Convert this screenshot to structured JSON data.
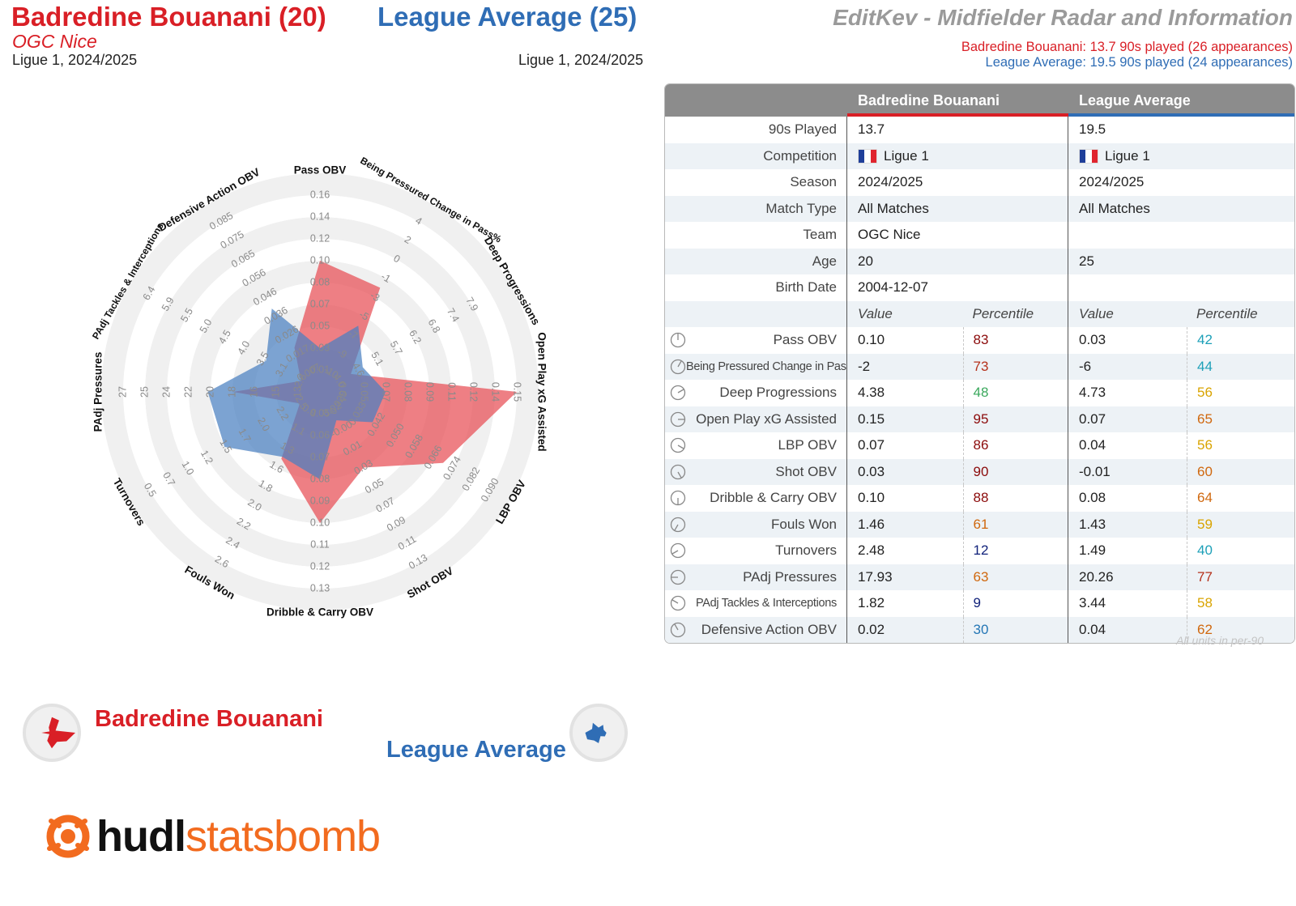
{
  "header": {
    "p1_title": "Badredine Bouanani (20)",
    "p2_title": "League Average (25)",
    "p1_team": "OGC Nice",
    "p1_season": "Ligue 1, 2024/2025",
    "p2_season": "Ligue 1, 2024/2025",
    "app_title": "EditKev - Midfielder Radar and Information",
    "p1_played": "Badredine Bouanani: 13.7 90s played (26 appearances)",
    "p2_played": "League Average: 19.5 90s played (24 appearances)"
  },
  "colors": {
    "p1": "#d91f26",
    "p2": "#2f6db5",
    "p1_fill": "#e8545b",
    "p2_fill": "#4a7fc1"
  },
  "chart_data": {
    "type": "radar",
    "axes": [
      {
        "label": "Pass OBV",
        "ticks": [
          "0.01",
          "0.03",
          "0.05",
          "0.07",
          "0.08",
          "0.10",
          "0.12",
          "0.14",
          "0.16"
        ]
      },
      {
        "label": "Being Pressured Change in Pass%",
        "ticks": [
          "-10",
          "-9",
          "-7",
          "-5",
          "-3",
          "-1",
          "0",
          "2",
          "4"
        ]
      },
      {
        "label": "Deep Progressions",
        "ticks": [
          "4.0",
          "4.6",
          "5.1",
          "5.7",
          "6.2",
          "6.8",
          "7.4",
          "7.9"
        ]
      },
      {
        "label": "Open Play xG Assisted",
        "ticks": [
          "0.04",
          "0.05",
          "0.07",
          "0.08",
          "0.09",
          "0.11",
          "0.12",
          "0.14",
          "0.15"
        ]
      },
      {
        "label": "LBP OBV",
        "ticks": [
          "0.025",
          "0.033",
          "0.042",
          "0.050",
          "0.058",
          "0.066",
          "0.074",
          "0.082",
          "0.090"
        ]
      },
      {
        "label": "Shot OBV",
        "ticks": [
          "-0.02",
          "-0.00",
          "0.01",
          "0.03",
          "0.05",
          "0.07",
          "0.09",
          "0.11",
          "0.13"
        ]
      },
      {
        "label": "Dribble & Carry OBV",
        "ticks": [
          "0.05",
          "0.06",
          "0.07",
          "0.08",
          "0.09",
          "0.10",
          "0.11",
          "0.12",
          "0.13"
        ]
      },
      {
        "label": "Fouls Won",
        "ticks": [
          "0.9",
          "1.1",
          "1.3",
          "1.6",
          "1.8",
          "2.0",
          "2.2",
          "2.4",
          "2.6"
        ]
      },
      {
        "label": "Turnovers",
        "ticks": [
          "2.5",
          "2.2",
          "2.0",
          "1.7",
          "1.5",
          "1.2",
          "1.0",
          "0.7",
          "0.5"
        ]
      },
      {
        "label": "PAdj Pressures",
        "ticks": [
          "13",
          "15",
          "16",
          "18",
          "20",
          "22",
          "24",
          "25",
          "27"
        ]
      },
      {
        "label": "PAdj Tackles & Interceptions",
        "ticks": [
          "2.6",
          "3.1",
          "3.5",
          "4.0",
          "4.5",
          "5.0",
          "5.5",
          "5.9",
          "6.4"
        ]
      },
      {
        "label": "Defensive Action OBV",
        "ticks": [
          "0.007",
          "0.017",
          "0.026",
          "0.036",
          "0.046",
          "0.056",
          "0.065",
          "0.075",
          "0.085"
        ]
      }
    ],
    "series": [
      {
        "name": "Badredine Bouanani",
        "values": [
          0.1,
          -2,
          4.38,
          0.15,
          0.07,
          0.03,
          0.1,
          1.46,
          2.48,
          17.93,
          1.82,
          0.02
        ]
      },
      {
        "name": "League Average",
        "values": [
          0.03,
          -6,
          4.73,
          0.07,
          0.04,
          -0.01,
          0.08,
          1.43,
          1.49,
          20.26,
          3.44,
          0.04
        ]
      }
    ]
  },
  "table": {
    "col_p1": "Badredine Bouanani",
    "col_p2": "League Average",
    "info_rows": [
      {
        "label": "90s Played",
        "p1": "13.7",
        "p2": "19.5"
      },
      {
        "label": "Competition",
        "p1": "Ligue 1",
        "p2": "Ligue 1",
        "flag": true
      },
      {
        "label": "Season",
        "p1": "2024/2025",
        "p2": "2024/2025"
      },
      {
        "label": "Match Type",
        "p1": "All Matches",
        "p2": "All Matches"
      },
      {
        "label": "Team",
        "p1": "OGC Nice",
        "p2": ""
      },
      {
        "label": "Age",
        "p1": "20",
        "p2": "25"
      },
      {
        "label": "Birth Date",
        "p1": "2004-12-07",
        "p2": ""
      }
    ],
    "sub_value": "Value",
    "sub_percentile": "Percentile",
    "metric_rows": [
      {
        "label": "Pass OBV",
        "p1_value": "0.10",
        "p1_pct": "83",
        "p2_value": "0.03",
        "p2_pct": "42"
      },
      {
        "label": "Being Pressured Change in Pass%",
        "p1_value": "-2",
        "p1_pct": "73",
        "p2_value": "-6",
        "p2_pct": "44",
        "small": true
      },
      {
        "label": "Deep Progressions",
        "p1_value": "4.38",
        "p1_pct": "48",
        "p2_value": "4.73",
        "p2_pct": "56"
      },
      {
        "label": "Open Play xG Assisted",
        "p1_value": "0.15",
        "p1_pct": "95",
        "p2_value": "0.07",
        "p2_pct": "65"
      },
      {
        "label": "LBP OBV",
        "p1_value": "0.07",
        "p1_pct": "86",
        "p2_value": "0.04",
        "p2_pct": "56"
      },
      {
        "label": "Shot OBV",
        "p1_value": "0.03",
        "p1_pct": "90",
        "p2_value": "-0.01",
        "p2_pct": "60"
      },
      {
        "label": "Dribble & Carry OBV",
        "p1_value": "0.10",
        "p1_pct": "88",
        "p2_value": "0.08",
        "p2_pct": "64"
      },
      {
        "label": "Fouls Won",
        "p1_value": "1.46",
        "p1_pct": "61",
        "p2_value": "1.43",
        "p2_pct": "59"
      },
      {
        "label": "Turnovers",
        "p1_value": "2.48",
        "p1_pct": "12",
        "p2_value": "1.49",
        "p2_pct": "40"
      },
      {
        "label": "PAdj Pressures",
        "p1_value": "17.93",
        "p1_pct": "63",
        "p2_value": "20.26",
        "p2_pct": "77"
      },
      {
        "label": "PAdj Tackles & Interceptions",
        "p1_value": "1.82",
        "p1_pct": "9",
        "p2_value": "3.44",
        "p2_pct": "58",
        "small": true
      },
      {
        "label": "Defensive Action OBV",
        "p1_value": "0.02",
        "p1_pct": "30",
        "p2_value": "0.04",
        "p2_pct": "62"
      }
    ],
    "units_note": "All units in per-90"
  },
  "legend": {
    "p1": "Badredine Bouanani",
    "p2": "League Average"
  },
  "logo": {
    "part_a": "hudl",
    "part_b": "statsbomb"
  }
}
